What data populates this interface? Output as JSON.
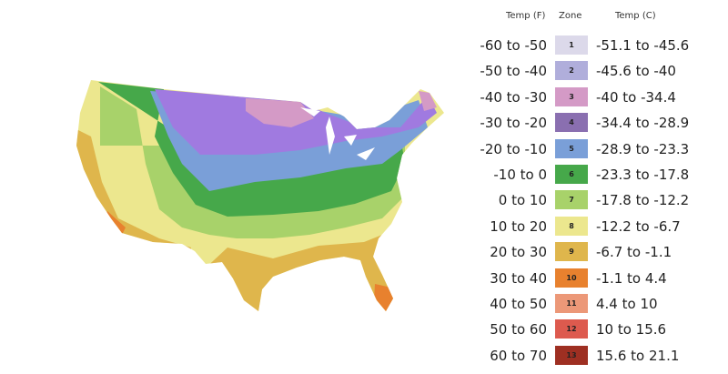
{
  "legend": {
    "headers": {
      "temp_f": "Temp (F)",
      "zone": "Zone",
      "temp_c": "Temp (C)"
    },
    "rows": [
      {
        "f": "-60 to -50",
        "zone": "1",
        "c": "-51.1 to -45.6",
        "color": "#dcd9ea"
      },
      {
        "f": "-50 to -40",
        "zone": "2",
        "c": "-45.6 to -40",
        "color": "#b0aedb"
      },
      {
        "f": "-40 to -30",
        "zone": "3",
        "c": "-40 to -34.4",
        "color": "#d49ac6"
      },
      {
        "f": "-30 to -20",
        "zone": "4",
        "c": "-34.4 to -28.9",
        "color": "#8a6fb0"
      },
      {
        "f": "-20 to -10",
        "zone": "5",
        "c": "-28.9 to -23.3",
        "color": "#7a9fd8"
      },
      {
        "f": "-10 to 0",
        "zone": "6",
        "c": "-23.3 to -17.8",
        "color": "#46a84a"
      },
      {
        "f": "0 to 10",
        "zone": "7",
        "c": "-17.8 to -12.2",
        "color": "#a8d26a"
      },
      {
        "f": "10 to 20",
        "zone": "8",
        "c": "-12.2 to -6.7",
        "color": "#ece78e"
      },
      {
        "f": "20 to 30",
        "zone": "9",
        "c": "-6.7 to -1.1",
        "color": "#dfb64c"
      },
      {
        "f": "30 to 40",
        "zone": "10",
        "c": "-1.1 to 4.4",
        "color": "#e8812e"
      },
      {
        "f": "40 to 50",
        "zone": "11",
        "c": "4.4 to 10",
        "color": "#ec9878"
      },
      {
        "f": "50 to 60",
        "zone": "12",
        "c": "10 to 15.6",
        "color": "#dd5a4e"
      },
      {
        "f": "60 to 70",
        "zone": "13",
        "c": "15.6 to 21.1",
        "color": "#9e2f22"
      }
    ]
  }
}
